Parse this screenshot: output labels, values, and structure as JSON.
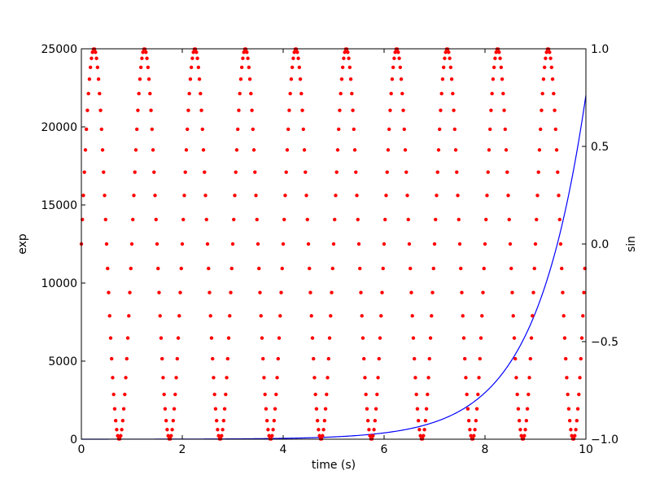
{
  "chart_data": {
    "type": "line",
    "title": "",
    "xlabel": "time (s)",
    "xlim": [
      0,
      10
    ],
    "xticks": [
      0,
      2,
      4,
      6,
      8,
      10
    ],
    "x_tick_labels": [
      "0",
      "2",
      "4",
      "6",
      "8",
      "10"
    ],
    "y_left": {
      "label": "exp",
      "lim": [
        0,
        25000
      ],
      "ticks": [
        0,
        5000,
        10000,
        15000,
        20000,
        25000
      ],
      "tick_labels": [
        "0",
        "5000",
        "10000",
        "15000",
        "20000",
        "25000"
      ]
    },
    "y_right": {
      "label": "sin",
      "lim": [
        -1.0,
        1.0
      ],
      "ticks": [
        -1.0,
        -0.5,
        0.0,
        0.5,
        1.0
      ],
      "tick_labels": [
        "−1.0",
        "−0.5",
        "0.0",
        "0.5",
        "1.0"
      ]
    },
    "grid": false,
    "legend": "none",
    "series": [
      {
        "axis": "left",
        "style": "line",
        "color": "#0000ff",
        "x": [
          0,
          1,
          2,
          3,
          4,
          5,
          6,
          6.5,
          7,
          7.5,
          8,
          8.25,
          8.5,
          8.75,
          9,
          9.25,
          9.5,
          9.75,
          10
        ],
        "y": [
          1,
          3,
          7,
          20,
          55,
          148,
          403,
          665,
          1097,
          1808,
          2981,
          3827,
          4915,
          6311,
          8103,
          10405,
          13360,
          17154,
          22026
        ]
      },
      {
        "axis": "right",
        "style": "dots",
        "color": "#ff0000",
        "function": "sin(2*pi*x)",
        "x_range": [
          0,
          10
        ],
        "points": 500
      }
    ]
  }
}
